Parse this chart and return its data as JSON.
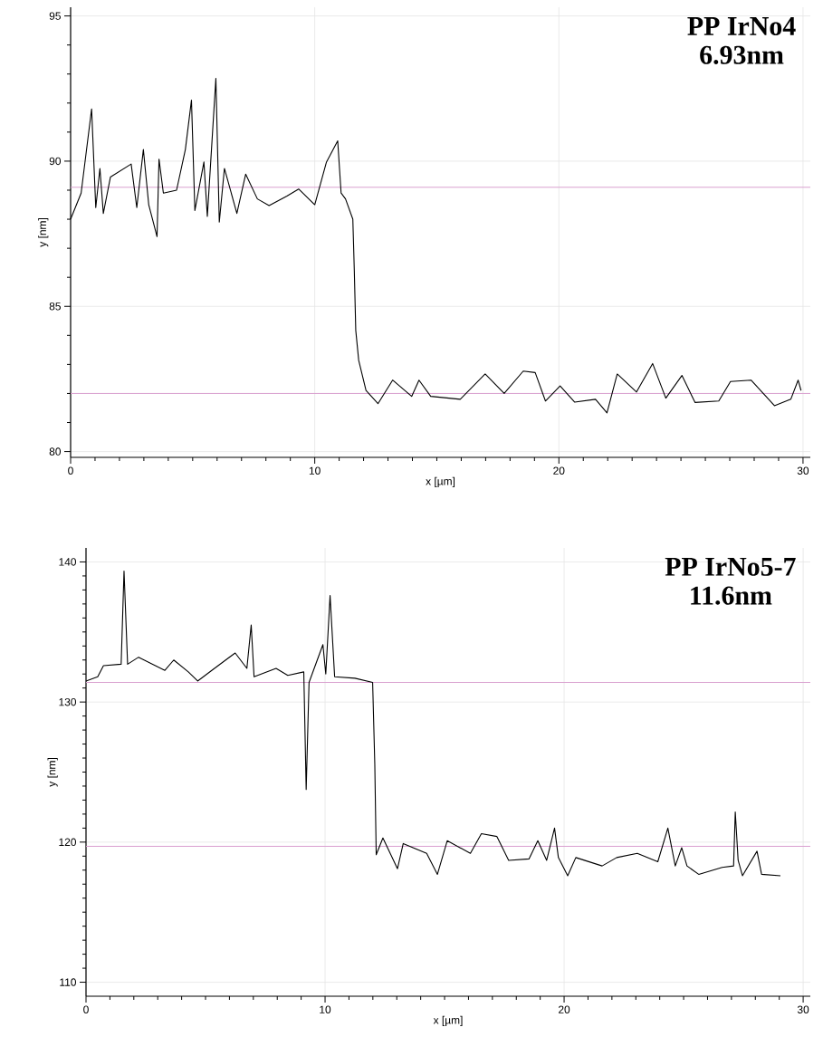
{
  "chart_data": [
    {
      "type": "line",
      "title": "PP IrNo4",
      "subtitle": "6.93nm",
      "xlabel": "x [µm]",
      "ylabel": "y [nm]",
      "grid": true,
      "marker": "none",
      "xlim": [
        0,
        30.3
      ],
      "ylim": [
        79.8,
        95.3
      ],
      "xticks": [
        0,
        10,
        20,
        30
      ],
      "yticks": [
        80,
        85,
        90,
        95
      ],
      "x": [
        0,
        0.43,
        0.86,
        1.03,
        1.2,
        1.34,
        1.63,
        2.48,
        2.71,
        2.98,
        3.2,
        3.54,
        3.62,
        3.8,
        4.34,
        4.7,
        4.95,
        5.09,
        5.46,
        5.6,
        5.95,
        6.09,
        6.3,
        6.81,
        7.17,
        7.65,
        8.13,
        8.86,
        9.34,
        10.0,
        10.48,
        10.94,
        11.08,
        11.26,
        11.56,
        11.62,
        11.68,
        11.8,
        12.1,
        12.59,
        13.19,
        13.97,
        14.27,
        14.75,
        15.96,
        16.98,
        17.76,
        18.54,
        19.03,
        19.45,
        20.05,
        20.65,
        21.5,
        21.97,
        22.39,
        23.18,
        23.84,
        24.38,
        25.04,
        25.58,
        26.55,
        27.03,
        27.87,
        28.83,
        29.5,
        29.8,
        29.92
      ],
      "series": [
        {
          "color": "#000000",
          "values": [
            88.0,
            88.9,
            91.8,
            88.4,
            89.75,
            88.2,
            89.45,
            89.9,
            88.4,
            90.4,
            88.5,
            87.4,
            90.07,
            88.9,
            89.0,
            90.4,
            92.1,
            88.3,
            89.97,
            88.1,
            92.85,
            87.9,
            89.75,
            88.2,
            89.55,
            88.7,
            88.47,
            88.8,
            89.04,
            88.5,
            89.97,
            90.7,
            88.9,
            88.7,
            88.0,
            86.24,
            84.17,
            83.14,
            82.1,
            81.65,
            82.46,
            81.9,
            82.46,
            81.9,
            81.8,
            82.67,
            82.0,
            82.77,
            82.72,
            81.74,
            82.26,
            81.7,
            81.8,
            81.33,
            82.67,
            82.05,
            83.03,
            81.84,
            82.62,
            81.69,
            81.74,
            82.41,
            82.46,
            81.58,
            81.8,
            82.46,
            82.1
          ]
        }
      ],
      "ref_lines": [
        {
          "axis": "y",
          "value": 89.1,
          "color": "#d9a0d0"
        },
        {
          "axis": "y",
          "value": 82.0,
          "color": "#d9a0d0"
        }
      ]
    },
    {
      "type": "line",
      "title": "PP IrNo5-7",
      "subtitle": "11.6nm",
      "xlabel": "x [µm]",
      "ylabel": "y [nm]",
      "grid": true,
      "marker": "none",
      "xlim": [
        0,
        30.3
      ],
      "ylim": [
        109,
        141
      ],
      "xticks": [
        0,
        10,
        20,
        30
      ],
      "yticks": [
        110,
        120,
        130,
        140
      ],
      "x": [
        0,
        0.49,
        0.73,
        1.47,
        1.59,
        1.74,
        2.2,
        3.3,
        3.67,
        4.28,
        4.67,
        5.26,
        6.24,
        6.73,
        6.91,
        7.03,
        7.95,
        8.44,
        9.11,
        9.21,
        9.33,
        9.91,
        10.03,
        10.21,
        10.4,
        11.25,
        11.99,
        12.08,
        12.14,
        12.42,
        13.03,
        13.27,
        14.25,
        14.7,
        15.11,
        16.08,
        16.54,
        17.19,
        17.68,
        18.53,
        18.9,
        19.27,
        19.6,
        19.76,
        20.15,
        20.49,
        21.59,
        22.2,
        23.06,
        23.92,
        24.34,
        24.65,
        24.92,
        25.14,
        25.63,
        26.61,
        27.09,
        27.16,
        27.28,
        27.46,
        28.07,
        28.26,
        29.05
      ],
      "series": [
        {
          "color": "#000000",
          "values": [
            131.5,
            131.8,
            132.6,
            132.7,
            139.35,
            132.7,
            133.2,
            132.26,
            133.0,
            132.15,
            131.5,
            132.26,
            133.5,
            132.4,
            135.5,
            131.8,
            132.4,
            131.9,
            132.15,
            123.76,
            131.4,
            134.1,
            132.0,
            137.6,
            131.8,
            131.7,
            131.4,
            125.6,
            119.1,
            120.3,
            118.1,
            119.9,
            119.2,
            117.7,
            120.1,
            119.2,
            120.6,
            120.4,
            118.7,
            118.8,
            120.1,
            118.7,
            121.0,
            118.9,
            117.6,
            118.9,
            118.3,
            118.9,
            119.2,
            118.6,
            121.0,
            118.3,
            119.6,
            118.3,
            117.7,
            118.2,
            118.3,
            122.15,
            118.7,
            117.6,
            119.35,
            117.7,
            117.6
          ]
        }
      ],
      "ref_lines": [
        {
          "axis": "y",
          "value": 131.4,
          "color": "#d9a0d0"
        },
        {
          "axis": "y",
          "value": 119.7,
          "color": "#d9a0d0"
        }
      ]
    }
  ]
}
